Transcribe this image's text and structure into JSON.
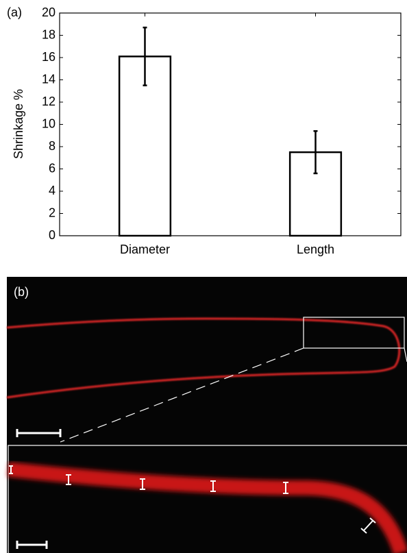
{
  "chart_data": {
    "type": "bar",
    "panel_label": "(a)",
    "y_label": "Shrinkage %",
    "categories": [
      "Diameter",
      "Length"
    ],
    "values": [
      16.1,
      7.5
    ],
    "errors": [
      2.6,
      1.9
    ],
    "color": "#ffffff",
    "ylim": [
      0,
      20
    ],
    "yticks": [
      0,
      2,
      4,
      6,
      8,
      10,
      12,
      14,
      16,
      18,
      20
    ],
    "grid": false
  },
  "panel_b": {
    "label": "(b)"
  }
}
